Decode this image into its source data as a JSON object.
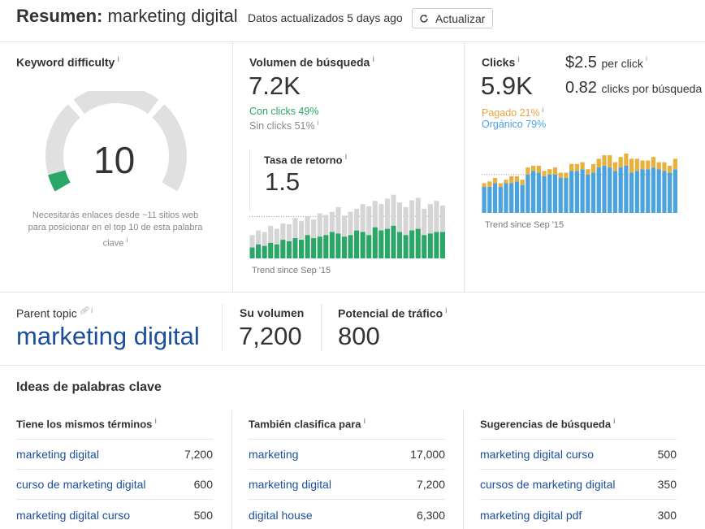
{
  "header": {
    "title_bold": "Resumen:",
    "title_keyword": "marketing digital",
    "updated": "Datos actualizados 5 days ago",
    "refresh_label": "Actualizar"
  },
  "kd": {
    "label": "Keyword difficulty",
    "value": "10",
    "note": "Necesitarás enlaces desde ~11 sitios web para posicionar en el top 10 de esta palabra clave",
    "gauge_fraction": 0.1,
    "color": "#2aa666"
  },
  "volume": {
    "label": "Volumen de búsqueda",
    "value": "7.2K",
    "with_clicks": "Con clicks 49%",
    "without_clicks": "Sin clicks 51%",
    "return_rate_label": "Tasa de retorno",
    "return_rate_value": "1.5",
    "trend": "Trend since Sep '15"
  },
  "clicks": {
    "label": "Clicks",
    "value": "5.9K",
    "paid": "Pagado 21%",
    "organic": "Orgánico 79%",
    "cpc": "$2.5",
    "cpc_suffix": "per click",
    "cps": "0.82",
    "cps_suffix": "clicks por búsqueda",
    "trend": "Trend since Sep '15"
  },
  "parent": {
    "label": "Parent topic",
    "value": "marketing digital",
    "volume_label": "Su volumen",
    "volume_value": "7,200",
    "traffic_label": "Potencial de tráfico",
    "traffic_value": "800"
  },
  "ideas": {
    "title": "Ideas de palabras clave",
    "columns": [
      {
        "header": "Tiene los mismos términos",
        "rows": [
          {
            "keyword": "marketing digital",
            "volume": "7,200"
          },
          {
            "keyword": "curso de marketing digital",
            "volume": "600"
          },
          {
            "keyword": "marketing digital curso",
            "volume": "500"
          }
        ]
      },
      {
        "header": "También clasifica para",
        "rows": [
          {
            "keyword": "marketing",
            "volume": "17,000"
          },
          {
            "keyword": "marketing digital",
            "volume": "7,200"
          },
          {
            "keyword": "digital house",
            "volume": "6,300"
          }
        ]
      },
      {
        "header": "Sugerencias de búsqueda",
        "rows": [
          {
            "keyword": "marketing digital curso",
            "volume": "500"
          },
          {
            "keyword": "cursos de marketing digital",
            "volume": "350"
          },
          {
            "keyword": "marketing digital pdf",
            "volume": "300"
          }
        ]
      }
    ]
  },
  "volume_trend": {
    "totals": [
      30,
      36,
      34,
      42,
      38,
      45,
      44,
      52,
      48,
      54,
      50,
      58,
      56,
      60,
      66,
      55,
      60,
      64,
      70,
      67,
      74,
      70,
      77,
      82,
      72,
      66,
      75,
      78,
      64,
      70,
      74,
      68
    ],
    "clicks": [
      14,
      18,
      16,
      20,
      18,
      24,
      22,
      26,
      24,
      30,
      26,
      28,
      30,
      34,
      32,
      28,
      30,
      36,
      34,
      30,
      40,
      36,
      38,
      42,
      34,
      30,
      36,
      38,
      30,
      32,
      34,
      34
    ],
    "colors": {
      "total": "#d5d5d5",
      "clicks": "#2aa666"
    }
  },
  "clicks_trend": {
    "organic": [
      30,
      30,
      34,
      30,
      34,
      34,
      36,
      32,
      44,
      48,
      46,
      42,
      44,
      44,
      40,
      40,
      48,
      48,
      50,
      44,
      46,
      52,
      54,
      52,
      48,
      52,
      54,
      46,
      48,
      50,
      50,
      52,
      50,
      48,
      46,
      50
    ],
    "paid": [
      4,
      6,
      6,
      4,
      4,
      8,
      6,
      6,
      8,
      6,
      8,
      6,
      6,
      8,
      6,
      6,
      8,
      8,
      8,
      6,
      10,
      10,
      12,
      14,
      10,
      12,
      14,
      16,
      14,
      10,
      10,
      12,
      8,
      10,
      8,
      12
    ],
    "colors": {
      "organic": "#4aa3df",
      "paid": "#e8b13d"
    }
  }
}
